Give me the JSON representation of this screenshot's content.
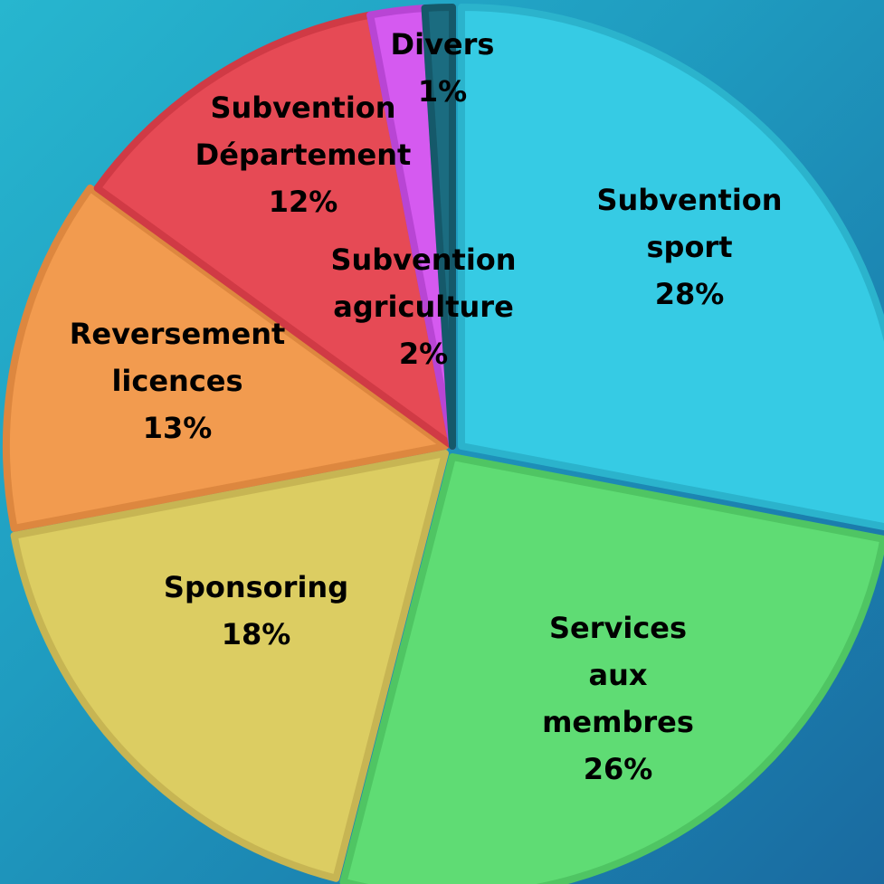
{
  "chart_data": {
    "type": "pie",
    "slices": [
      {
        "name": "Subvention sport",
        "label_lines": [
          "Subvention",
          "sport"
        ],
        "percent_label": "28%",
        "value": 28,
        "color": "#36cbe4",
        "border": "#2bb3cc"
      },
      {
        "name": "Services aux membres",
        "label_lines": [
          "Services",
          "aux",
          "membres"
        ],
        "percent_label": "26%",
        "value": 26,
        "color": "#5fdc74",
        "border": "#4fc563"
      },
      {
        "name": "Sponsoring",
        "label_lines": [
          "Sponsoring"
        ],
        "percent_label": "18%",
        "value": 18,
        "color": "#dccd62",
        "border": "#c7b553"
      },
      {
        "name": "Reversement licences",
        "label_lines": [
          "Reversement",
          "licences"
        ],
        "percent_label": "13%",
        "value": 13,
        "color": "#f29b4f",
        "border": "#dd873f"
      },
      {
        "name": "Subvention Département",
        "label_lines": [
          "Subvention",
          "Département"
        ],
        "percent_label": "12%",
        "value": 12,
        "color": "#e64a55",
        "border": "#d03a45"
      },
      {
        "name": "Subvention agriculture",
        "label_lines": [
          "Subvention",
          "agriculture"
        ],
        "percent_label": "2%",
        "value": 2,
        "color": "#d55af0",
        "border": "#b845d4"
      },
      {
        "name": "Divers",
        "label_lines": [
          "Divers"
        ],
        "percent_label": "1%",
        "value": 1,
        "color": "#1b6c80",
        "border": "#15596a"
      }
    ]
  }
}
